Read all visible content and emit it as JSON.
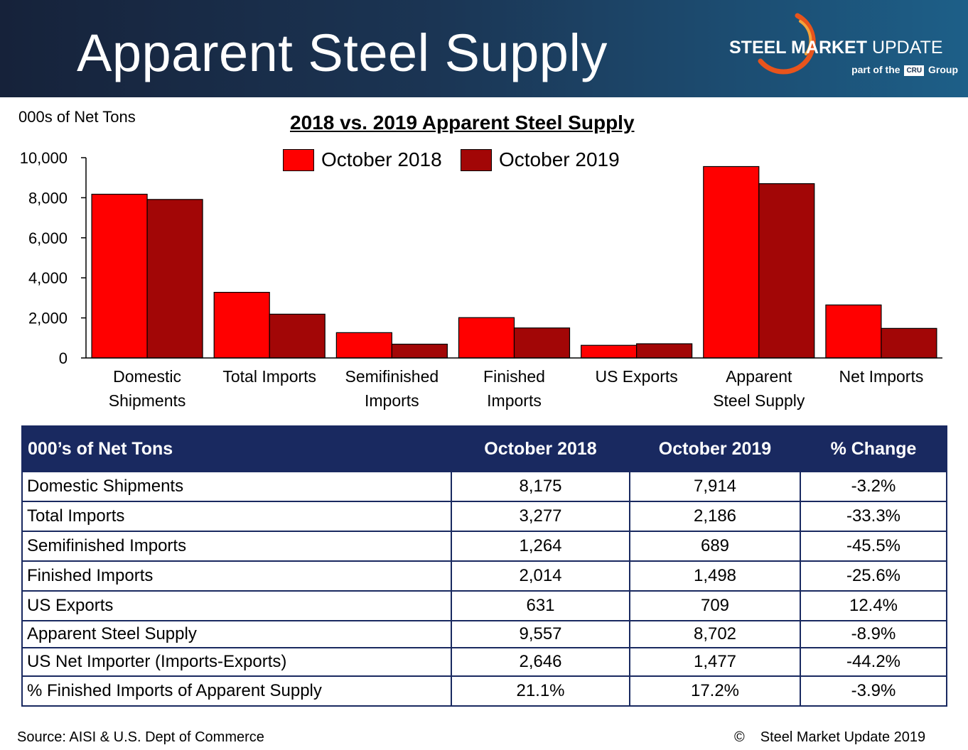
{
  "banner": {
    "title": "Apparent Steel Supply",
    "logo_bold": "STEEL MARKET",
    "logo_light": "UPDATE",
    "logo_sub_pre": "part of the",
    "logo_sub_box": "CRU",
    "logo_sub_post": "Group"
  },
  "colors": {
    "oct2018": "#ff0000",
    "oct2019": "#a20606",
    "table_header": "#192960"
  },
  "chart_data": {
    "type": "bar",
    "title": "2018 vs. 2019 Apparent Steel Supply",
    "ylabel": "000s of Net Tons",
    "xlabel": "",
    "ylim": [
      0,
      10000
    ],
    "yticks": [
      0,
      2000,
      4000,
      6000,
      8000,
      10000
    ],
    "ytick_labels": [
      "0",
      "2,000",
      "4,000",
      "6,000",
      "8,000",
      "10,000"
    ],
    "grid": false,
    "legend_position": "top-center",
    "categories": [
      [
        "Domestic",
        "Shipments"
      ],
      [
        "Total Imports"
      ],
      [
        "Semifinished",
        "Imports"
      ],
      [
        "Finished",
        "Imports"
      ],
      [
        "US Exports"
      ],
      [
        "Apparent",
        "Steel Supply"
      ],
      [
        "Net Imports"
      ]
    ],
    "series": [
      {
        "name": "October 2018",
        "color": "#ff0000",
        "values": [
          8175,
          3277,
          1264,
          2014,
          631,
          9557,
          2646
        ]
      },
      {
        "name": "October 2019",
        "color": "#a20606",
        "values": [
          7914,
          2186,
          689,
          1498,
          709,
          8702,
          1477
        ]
      }
    ]
  },
  "table": {
    "headers": [
      "000’s of Net Tons",
      "October 2018",
      "October 2019",
      "% Change"
    ],
    "rows": [
      [
        "Domestic Shipments",
        "8,175",
        "7,914",
        "-3.2%"
      ],
      [
        "Total Imports",
        "3,277",
        "2,186",
        "-33.3%"
      ],
      [
        "Semifinished Imports",
        "1,264",
        "689",
        "-45.5%"
      ],
      [
        "Finished Imports",
        "2,014",
        "1,498",
        "-25.6%"
      ],
      [
        "US Exports",
        "631",
        "709",
        "12.4%"
      ],
      [
        "Apparent Steel Supply",
        "9,557",
        "8,702",
        "-8.9%"
      ],
      [
        "US Net Importer (Imports-Exports)",
        "2,646",
        "1,477",
        "-44.2%"
      ],
      [
        "% Finished Imports of Apparent Supply",
        "21.1%",
        "17.2%",
        "-3.9%"
      ]
    ]
  },
  "footer": {
    "source": "Source:  AISI & U.S. Dept of Commerce",
    "copyright_symbol": "©",
    "copyright": "Steel Market Update 2019"
  }
}
